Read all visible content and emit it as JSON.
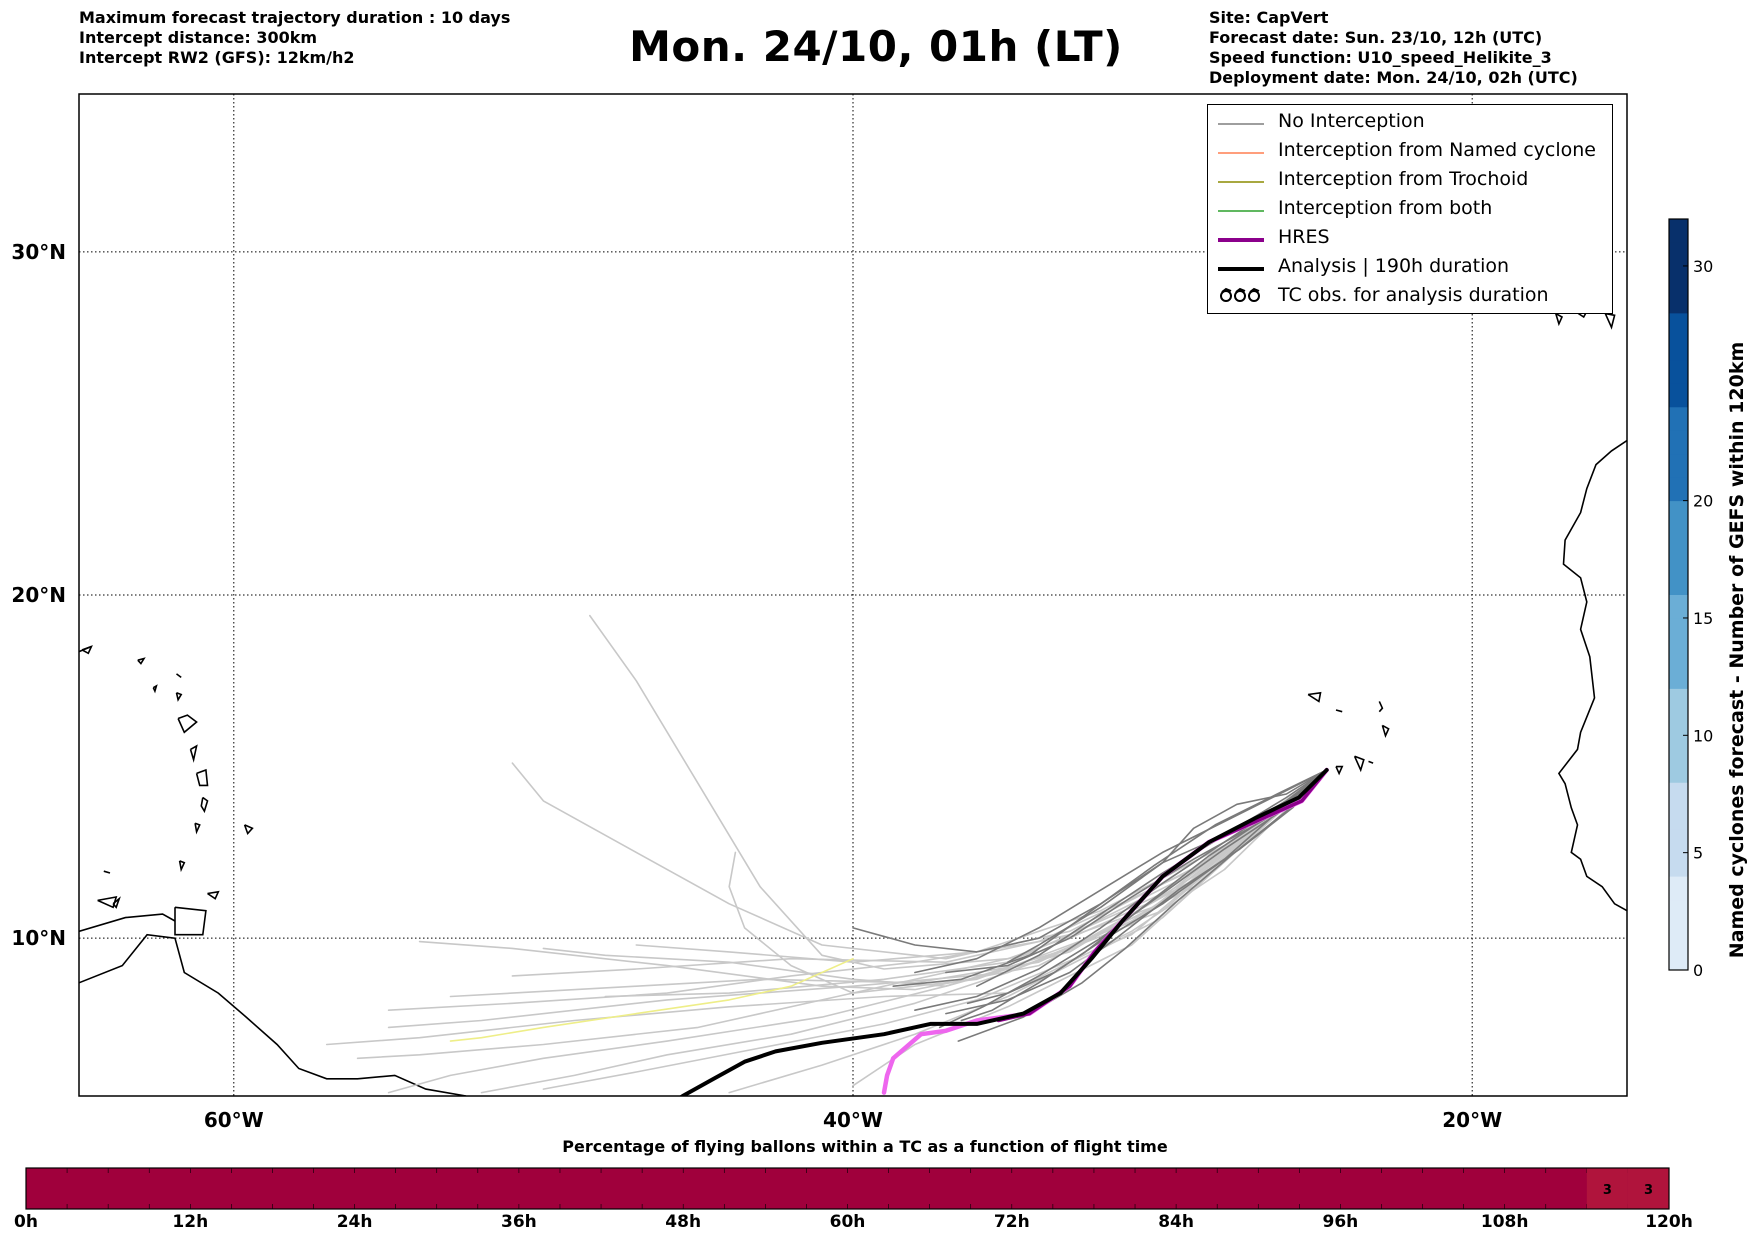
{
  "header": {
    "left": [
      "Maximum forecast trajectory duration : 10 days",
      "Intercept distance: 300km",
      "Intercept RW2 (GFS):  12km/h2"
    ],
    "title": "Mon. 24/10, 01h (LT)",
    "right": [
      "Site: CapVert",
      "Forecast date: Sun. 23/10, 12h (UTC)",
      "Speed function: U10_speed_Helikite_3",
      "Deployment date: Mon. 24/10, 02h (UTC)"
    ]
  },
  "map": {
    "lon_range": [
      -65,
      -15
    ],
    "lat_range": [
      5.4,
      34.6
    ],
    "lon_ticks": [
      {
        "value": -60,
        "label": "60°W"
      },
      {
        "value": -40,
        "label": "40°W"
      },
      {
        "value": -20,
        "label": "20°W"
      }
    ],
    "lat_ticks": [
      {
        "value": 30,
        "label": "30°N"
      },
      {
        "value": 20,
        "label": "20°N"
      },
      {
        "value": 10,
        "label": "10°N"
      }
    ],
    "grid": "dotted",
    "origin": {
      "lon": -24.7,
      "lat": 14.9
    },
    "colors": {
      "no_interception": "#7a7a7a",
      "light_ensemble": "#c8c8c8",
      "named_cyclone": "#ff7f50",
      "trochoid": "#8b8b00",
      "both": "#2ca02c",
      "hres": "#8b008b",
      "hres_light": "#ee66ee",
      "analysis": "#000000",
      "yellow_track": "#eeee88"
    }
  },
  "legend": {
    "position": "top-right",
    "items": [
      {
        "label": "No Interception",
        "color": "#7f7f7f",
        "width": 1.5,
        "symbol": "line"
      },
      {
        "label": "Interception from Named cyclone",
        "color": "#ff7f50",
        "width": 1.5,
        "symbol": "line"
      },
      {
        "label": "Interception from Trochoid",
        "color": "#8b8b00",
        "width": 1.5,
        "symbol": "line"
      },
      {
        "label": "Interception from both",
        "color": "#2ca02c",
        "width": 1.5,
        "symbol": "line"
      },
      {
        "label": "HRES",
        "color": "#8b008b",
        "width": 4,
        "symbol": "line"
      },
      {
        "label": "Analysis | 190h duration",
        "color": "#000000",
        "width": 4,
        "symbol": "line"
      },
      {
        "label": "TC obs. for analysis duration",
        "color": "#000000",
        "width": 2,
        "symbol": "ꝿꝿꝿ"
      }
    ]
  },
  "colorbar": {
    "label": "Named cyclones forecast - Number of GEFS within 120km",
    "min": 0,
    "max": 32,
    "ticks": [
      0,
      5,
      10,
      15,
      20,
      30
    ],
    "colors": [
      "#deebf7",
      "#c6dbef",
      "#9ecae1",
      "#6baed6",
      "#4292c6",
      "#2171b5",
      "#08519c",
      "#08306b"
    ]
  },
  "bottom_bar": {
    "title": "Percentage of flying ballons within a TC as a function of flight time",
    "ticks": [
      "0h",
      "12h",
      "24h",
      "36h",
      "48h",
      "60h",
      "72h",
      "84h",
      "96h",
      "108h",
      "120h"
    ],
    "hours": 120,
    "main_color": "#a0003c",
    "cell_values": [
      {
        "hour": 114,
        "value": "3"
      },
      {
        "hour": 117,
        "value": "3"
      }
    ],
    "cell_color": "#b0143c"
  }
}
